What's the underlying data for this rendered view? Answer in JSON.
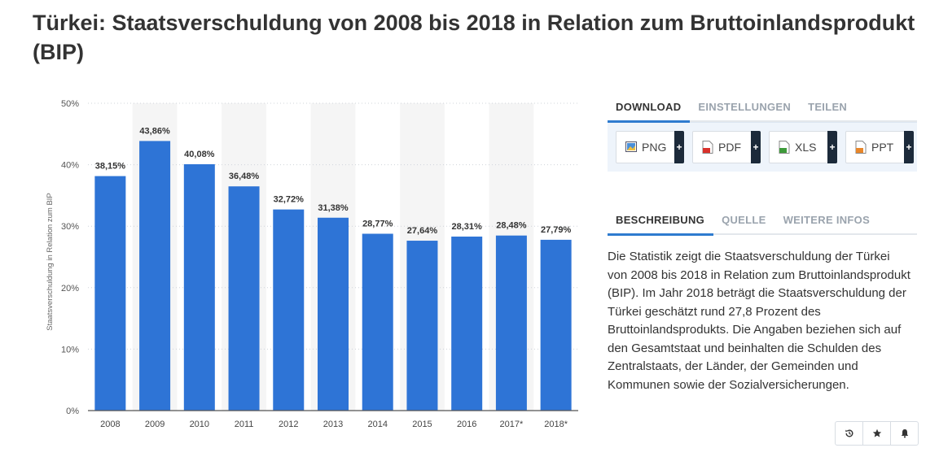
{
  "title": "Türkei: Staatsverschuldung von 2008 bis 2018 in Relation zum Bruttoinlandsprodukt (BIP)",
  "colors": {
    "bar": "#2e74d6",
    "band": "#f5f5f5",
    "accent": "#2e7bcf"
  },
  "chart_data": {
    "type": "bar",
    "categories": [
      "2008",
      "2009",
      "2010",
      "2011",
      "2012",
      "2013",
      "2014",
      "2015",
      "2016",
      "2017*",
      "2018*"
    ],
    "values": [
      38.15,
      43.86,
      40.08,
      36.48,
      32.72,
      31.38,
      28.77,
      27.64,
      28.31,
      28.48,
      27.79
    ],
    "value_labels": [
      "38,15%",
      "43,86%",
      "40,08%",
      "36,48%",
      "32,72%",
      "31,38%",
      "28,77%",
      "27,64%",
      "28,31%",
      "28,48%",
      "27,79%"
    ],
    "ylabel": "Staatsverschuldung in Relation zum BIP",
    "ylim": [
      0,
      50
    ],
    "yticks": [
      0,
      10,
      20,
      30,
      40,
      50
    ],
    "ytick_labels": [
      "0%",
      "10%",
      "20%",
      "30%",
      "40%",
      "50%"
    ],
    "grid": true,
    "legend": false
  },
  "download": {
    "tabs": [
      "DOWNLOAD",
      "EINSTELLUNGEN",
      "TEILEN"
    ],
    "buttons": [
      {
        "label": "PNG",
        "icon": "png-file-icon"
      },
      {
        "label": "PDF",
        "icon": "pdf-file-icon"
      },
      {
        "label": "XLS",
        "icon": "xls-file-icon"
      },
      {
        "label": "PPT",
        "icon": "ppt-file-icon"
      }
    ],
    "plus": "+"
  },
  "info": {
    "tabs": [
      "BESCHREIBUNG",
      "QUELLE",
      "WEITERE INFOS"
    ],
    "description": "Die Statistik zeigt die Staatsverschuldung der Türkei von 2008 bis 2018 in Relation zum Bruttoinlandsprodukt (BIP). Im Jahr 2018 beträgt die Staatsverschuldung der Türkei geschätzt rund 27,8 Prozent des Bruttoinlandsprodukts. Die Angaben beziehen sich auf den Gesamtstaat und beinhalten die Schulden des Zentralstaats, der Länder, der Gemeinden und Kommunen sowie der Sozialversicherungen."
  },
  "actions": [
    "history-icon",
    "star-icon",
    "bell-icon"
  ]
}
